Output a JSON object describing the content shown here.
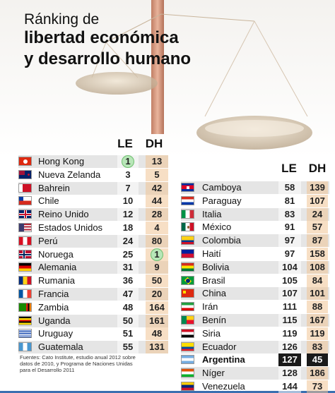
{
  "title": {
    "line1": "Ránking de",
    "line2": "libertad económica",
    "line3": "y desarrollo humano"
  },
  "left_table": {
    "header_le": "LE",
    "header_dh": "DH",
    "rows": [
      {
        "country": "Hong Kong",
        "le": "1",
        "dh": "13",
        "flag": "hongkong",
        "le_circle": true
      },
      {
        "country": "Nueva Zelanda",
        "le": "3",
        "dh": "5",
        "flag": "nz"
      },
      {
        "country": "Bahrein",
        "le": "7",
        "dh": "42",
        "flag": "bahrain"
      },
      {
        "country": "Chile",
        "le": "10",
        "dh": "44",
        "flag": "chile"
      },
      {
        "country": "Reino Unido",
        "le": "12",
        "dh": "28",
        "flag": "uk"
      },
      {
        "country": "Estados Unidos",
        "le": "18",
        "dh": "4",
        "flag": "usa"
      },
      {
        "country": "Perú",
        "le": "24",
        "dh": "80",
        "flag": "peru"
      },
      {
        "country": "Noruega",
        "le": "25",
        "dh": "1",
        "flag": "norway",
        "dh_circle": true
      },
      {
        "country": "Alemania",
        "le": "31",
        "dh": "9",
        "flag": "germany"
      },
      {
        "country": "Rumania",
        "le": "36",
        "dh": "50",
        "flag": "romania"
      },
      {
        "country": "Francia",
        "le": "47",
        "dh": "20",
        "flag": "france"
      },
      {
        "country": "Zambia",
        "le": "48",
        "dh": "164",
        "flag": "zambia"
      },
      {
        "country": "Uganda",
        "le": "50",
        "dh": "161",
        "flag": "uganda"
      },
      {
        "country": "Uruguay",
        "le": "51",
        "dh": "48",
        "flag": "uruguay"
      },
      {
        "country": "Guatemala",
        "le": "55",
        "dh": "131",
        "flag": "guatemala"
      }
    ]
  },
  "right_table": {
    "header_le": "LE",
    "header_dh": "DH",
    "rows": [
      {
        "country": "Camboya",
        "le": "58",
        "dh": "139",
        "flag": "cambodia"
      },
      {
        "country": "Paraguay",
        "le": "81",
        "dh": "107",
        "flag": "paraguay"
      },
      {
        "country": "Italia",
        "le": "83",
        "dh": "24",
        "flag": "italy"
      },
      {
        "country": "México",
        "le": "91",
        "dh": "57",
        "flag": "mexico"
      },
      {
        "country": "Colombia",
        "le": "97",
        "dh": "87",
        "flag": "colombia"
      },
      {
        "country": "Haití",
        "le": "97",
        "dh": "158",
        "flag": "haiti"
      },
      {
        "country": "Bolivia",
        "le": "104",
        "dh": "108",
        "flag": "bolivia"
      },
      {
        "country": "Brasil",
        "le": "105",
        "dh": "84",
        "flag": "brazil"
      },
      {
        "country": "China",
        "le": "107",
        "dh": "101",
        "flag": "china"
      },
      {
        "country": "Irán",
        "le": "111",
        "dh": "88",
        "flag": "iran"
      },
      {
        "country": "Benín",
        "le": "115",
        "dh": "167",
        "flag": "benin"
      },
      {
        "country": "Siria",
        "le": "119",
        "dh": "119",
        "flag": "syria"
      },
      {
        "country": "Ecuador",
        "le": "126",
        "dh": "83",
        "flag": "ecuador"
      },
      {
        "country": "Argentina",
        "le": "127",
        "dh": "45",
        "flag": "argentina",
        "highlight": true
      },
      {
        "country": "Níger",
        "le": "128",
        "dh": "186",
        "flag": "niger"
      },
      {
        "country": "Venezuela",
        "le": "144",
        "dh": "73",
        "flag": "venezuela"
      }
    ]
  },
  "notes": "Fuentes: Cato Institute, estudio anual 2012 sobre datos de 2010, y Programa de Naciones Unidas para el Desarrollo 2011",
  "colors": {
    "le_circle": "#b8e6b8",
    "highlight": "#1a1a1a",
    "dh_column": "#f0c496",
    "bottom_bar": "#3a6fb0"
  }
}
